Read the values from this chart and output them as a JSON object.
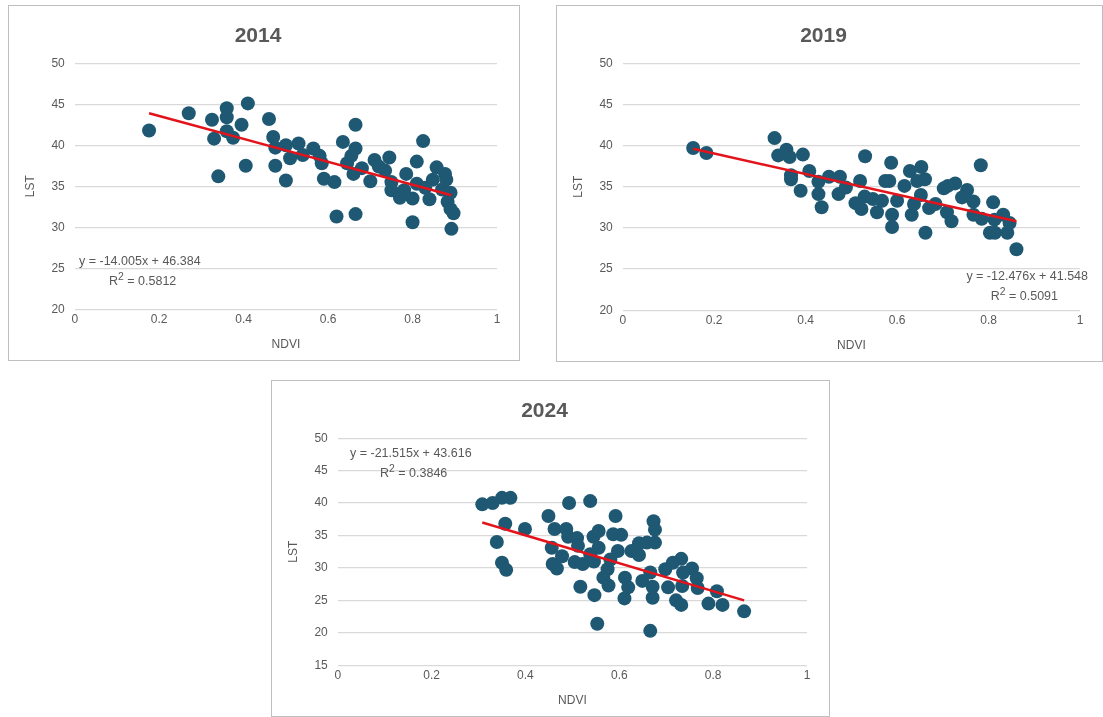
{
  "chart_data": [
    {
      "type": "scatter",
      "title": "2014",
      "xlabel": "NDVI",
      "ylabel": "LST",
      "xlim": [
        0,
        1
      ],
      "xticks": [
        0,
        0.2,
        0.4,
        0.6,
        0.8,
        1
      ],
      "ylim": [
        20,
        50
      ],
      "yticks": [
        20,
        25,
        30,
        35,
        40,
        45,
        50
      ],
      "grid": "y",
      "annotations": [
        "y = -14.005x + 46.384",
        "R$^{2}$ = 0.5812"
      ],
      "series": [
        {
          "color": "#1f5873",
          "marker": "circle",
          "x": [
            0.176,
            0.27,
            0.325,
            0.33,
            0.34,
            0.36,
            0.36,
            0.36,
            0.375,
            0.395,
            0.41,
            0.405,
            0.46,
            0.47,
            0.475,
            0.475,
            0.5,
            0.5,
            0.51,
            0.53,
            0.54,
            0.565,
            0.58,
            0.585,
            0.59,
            0.615,
            0.62,
            0.635,
            0.645,
            0.655,
            0.665,
            0.665,
            0.66,
            0.665,
            0.68,
            0.7,
            0.71,
            0.72,
            0.735,
            0.745,
            0.75,
            0.75,
            0.77,
            0.78,
            0.785,
            0.8,
            0.8,
            0.81,
            0.81,
            0.825,
            0.83,
            0.84,
            0.848,
            0.857,
            0.87,
            0.877,
            0.88,
            0.883,
            0.89,
            0.89,
            0.892,
            0.897
          ],
          "values": [
            41.8,
            43.9,
            43.1,
            40.8,
            36.2,
            41.7,
            44.5,
            43.4,
            40.9,
            42.5,
            45.1,
            37.5,
            43.2,
            41.0,
            39.7,
            37.5,
            35.7,
            40.0,
            38.4,
            40.2,
            38.8,
            39.6,
            38.7,
            37.8,
            35.9,
            35.5,
            31.3,
            40.4,
            37.8,
            38.7,
            42.5,
            39.6,
            36.5,
            31.6,
            37.2,
            35.6,
            38.2,
            37.4,
            36.9,
            38.5,
            35.5,
            34.5,
            33.6,
            34.5,
            36.5,
            30.6,
            33.5,
            35.3,
            38.0,
            40.5,
            34.8,
            33.4,
            35.8,
            37.3,
            34.6,
            36.5,
            35.8,
            33.1,
            32.2,
            34.2,
            29.8,
            31.7
          ]
        },
        {
          "type": "line",
          "color": "#e3131b",
          "marker": "none",
          "x": [
            0.176,
            0.892
          ],
          "values": [
            43.9,
            33.9
          ]
        }
      ]
    },
    {
      "type": "scatter",
      "title": "2019",
      "xlabel": "NDVI",
      "ylabel": "LST",
      "xlim": [
        0,
        1
      ],
      "xticks": [
        0,
        0.2,
        0.4,
        0.6,
        0.8,
        1
      ],
      "ylim": [
        20,
        50
      ],
      "yticks": [
        20,
        25,
        30,
        35,
        40,
        45,
        50
      ],
      "grid": "y",
      "annotations": [
        "y = -12.476x + 41.548",
        "R$^{2}$ = 0.5091"
      ],
      "series": [
        {
          "color": "#1f5873",
          "marker": "circle",
          "x": [
            0.154,
            0.183,
            0.332,
            0.34,
            0.358,
            0.365,
            0.394,
            0.368,
            0.368,
            0.389,
            0.408,
            0.428,
            0.428,
            0.435,
            0.451,
            0.475,
            0.472,
            0.488,
            0.509,
            0.519,
            0.522,
            0.53,
            0.529,
            0.547,
            0.556,
            0.567,
            0.574,
            0.583,
            0.587,
            0.589,
            0.589,
            0.6,
            0.616,
            0.628,
            0.632,
            0.637,
            0.644,
            0.653,
            0.652,
            0.661,
            0.662,
            0.67,
            0.684,
            0.702,
            0.709,
            0.719,
            0.711,
            0.727,
            0.742,
            0.753,
            0.767,
            0.767,
            0.783,
            0.785,
            0.803,
            0.81,
            0.814,
            0.813,
            0.832,
            0.846,
            0.841,
            0.861
          ],
          "values": [
            39.7,
            39.1,
            40.9,
            38.8,
            39.5,
            38.6,
            38.9,
            36.4,
            35.9,
            34.5,
            36.9,
            35.6,
            34.1,
            32.5,
            36.2,
            36.2,
            34.1,
            34.9,
            33.0,
            35.7,
            32.3,
            38.7,
            33.8,
            33.5,
            31.9,
            33.3,
            35.7,
            35.7,
            37.9,
            31.6,
            30.1,
            33.3,
            35.1,
            36.9,
            31.6,
            32.9,
            35.7,
            37.4,
            34.0,
            35.9,
            29.4,
            32.4,
            32.9,
            34.8,
            31.9,
            30.8,
            35.1,
            35.4,
            33.7,
            34.6,
            33.2,
            31.6,
            37.6,
            31.1,
            29.4,
            33.1,
            29.4,
            31.0,
            31.6,
            30.6,
            29.4,
            27.4
          ]
        },
        {
          "type": "line",
          "color": "#e3131b",
          "marker": "none",
          "x": [
            0.154,
            0.861
          ],
          "values": [
            39.6,
            30.8
          ]
        }
      ]
    },
    {
      "type": "scatter",
      "title": "2024",
      "xlabel": "NDVI",
      "ylabel": "LST",
      "xlim": [
        0,
        1
      ],
      "xticks": [
        0,
        0.2,
        0.4,
        0.6,
        0.8,
        1
      ],
      "ylim": [
        15,
        50
      ],
      "yticks": [
        15,
        20,
        25,
        30,
        35,
        40,
        45,
        50
      ],
      "grid": "y",
      "annotations": [
        "y = -21.515x + 43.616",
        "R$^{2}$ = 0.3846"
      ],
      "series": [
        {
          "color": "#1f5873",
          "marker": "circle",
          "x": [
            0.308,
            0.33,
            0.35,
            0.368,
            0.357,
            0.339,
            0.35,
            0.359,
            0.399,
            0.449,
            0.456,
            0.462,
            0.458,
            0.467,
            0.478,
            0.487,
            0.493,
            0.491,
            0.505,
            0.51,
            0.512,
            0.517,
            0.522,
            0.538,
            0.538,
            0.545,
            0.547,
            0.546,
            0.553,
            0.556,
            0.556,
            0.566,
            0.577,
            0.575,
            0.581,
            0.587,
            0.592,
            0.597,
            0.604,
            0.612,
            0.611,
            0.619,
            0.626,
            0.642,
            0.642,
            0.649,
            0.659,
            0.666,
            0.666,
            0.671,
            0.671,
            0.673,
            0.676,
            0.676,
            0.698,
            0.704,
            0.714,
            0.721,
            0.732,
            0.732,
            0.734,
            0.736,
            0.755,
            0.765,
            0.767,
            0.79,
            0.808,
            0.82,
            0.866
          ],
          "values": [
            39.8,
            40.0,
            40.8,
            40.8,
            36.8,
            34.0,
            30.8,
            29.7,
            36.0,
            38.0,
            33.1,
            36.0,
            30.6,
            29.9,
            31.8,
            36.0,
            40.0,
            34.8,
            30.9,
            34.6,
            33.4,
            27.1,
            30.6,
            40.3,
            32.1,
            34.8,
            25.8,
            31.0,
            21.4,
            35.7,
            33.1,
            28.5,
            27.3,
            29.8,
            31.3,
            35.2,
            38.0,
            32.6,
            35.1,
            28.5,
            25.3,
            27.0,
            32.6,
            32.0,
            33.8,
            28.0,
            33.9,
            29.3,
            20.3,
            25.4,
            27.1,
            37.2,
            35.9,
            33.9,
            29.8,
            27.0,
            30.8,
            25.0,
            31.4,
            24.3,
            27.2,
            29.3,
            29.9,
            28.4,
            26.9,
            24.5,
            26.4,
            24.3,
            23.3
          ]
        },
        {
          "type": "line",
          "color": "#e3131b",
          "marker": "none",
          "x": [
            0.308,
            0.866
          ],
          "values": [
            37.0,
            25.0
          ]
        }
      ]
    }
  ]
}
